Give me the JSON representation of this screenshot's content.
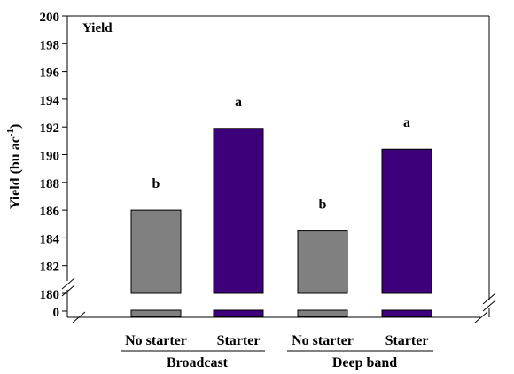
{
  "chart_data": {
    "type": "bar",
    "title": "Yield",
    "ylabel": "Yield (bu ac",
    "ylabel_superscript": "-1",
    "ylabel_suffix": ")",
    "xlabel": "",
    "ylim": [
      180,
      200
    ],
    "broken_axis": true,
    "y_ticks": [
      180,
      182,
      184,
      186,
      188,
      190,
      192,
      194,
      196,
      198,
      200
    ],
    "y_break_tick": 0,
    "grid": false,
    "categories": [
      "No starter",
      "Starter",
      "No starter",
      "Starter"
    ],
    "groups": [
      {
        "label": "Broadcast",
        "categories": [
          0,
          1
        ]
      },
      {
        "label": "Deep band",
        "categories": [
          2,
          3
        ]
      }
    ],
    "values": [
      186.0,
      191.9,
      184.5,
      190.4
    ],
    "letters": [
      "b",
      "a",
      "b",
      "a"
    ],
    "colors": [
      "#808080",
      "#3d007a",
      "#808080",
      "#3d007a"
    ]
  }
}
